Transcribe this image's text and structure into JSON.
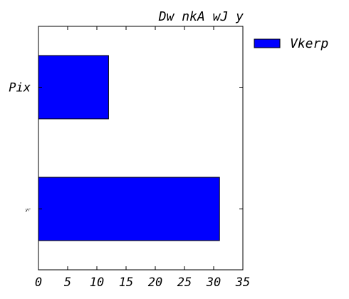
{
  "chart_data": {
    "type": "bar",
    "orientation": "horizontal",
    "title": "Dw nkA wJ y",
    "xlabel": "",
    "ylabel": "",
    "categories": [
      "Pix",
      "yr"
    ],
    "series": [
      {
        "name": "Vkerp",
        "values": [
          12,
          31
        ],
        "color": "#0000ff"
      }
    ],
    "xlim": [
      0,
      35
    ],
    "x_ticks": [
      0,
      5,
      10,
      15,
      20,
      25,
      30,
      35
    ],
    "x_tick_labels": [
      "0",
      "5",
      "10",
      "15",
      "20",
      "25",
      "30",
      "35"
    ],
    "grid": false,
    "legend_position": "outside-top-right"
  }
}
